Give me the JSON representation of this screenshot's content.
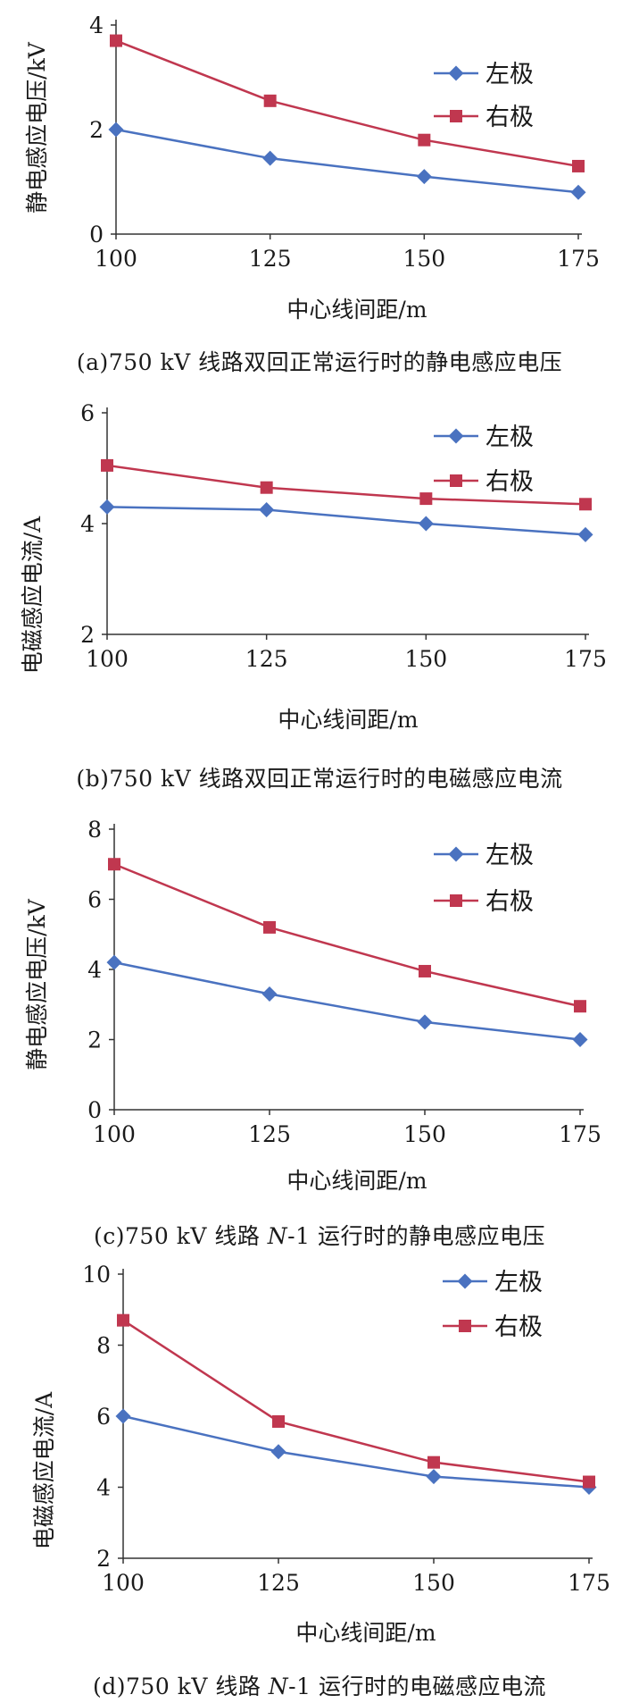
{
  "colors": {
    "left": "#4a72c0",
    "right": "#c0374f",
    "axis": "#333333"
  },
  "legend": {
    "left": "左极",
    "right": "右极"
  },
  "chart_data": [
    {
      "type": "line",
      "caption": "(a)750 kV 线路双回正常运行时的静电感应电压",
      "xlabel": "中心线间距/m",
      "ylabel": "静电感应电压/kV",
      "x": [
        100,
        125,
        150,
        175
      ],
      "xticks": [
        "100",
        "125",
        "150",
        "175"
      ],
      "yticks": [
        "0",
        "2",
        "4"
      ],
      "ylim": [
        0,
        4
      ],
      "series": [
        {
          "name": "左极",
          "values": [
            2.0,
            1.45,
            1.1,
            0.8
          ]
        },
        {
          "name": "右极",
          "values": [
            3.7,
            2.55,
            1.8,
            1.3
          ]
        }
      ]
    },
    {
      "type": "line",
      "caption": "(b)750 kV 线路双回正常运行时的电磁感应电流",
      "xlabel": "中心线间距/m",
      "ylabel": "电磁感应电流/A",
      "x": [
        100,
        125,
        150,
        175
      ],
      "xticks": [
        "100",
        "125",
        "150",
        "175"
      ],
      "yticks": [
        "2",
        "4",
        "6"
      ],
      "ylim": [
        2,
        6
      ],
      "series": [
        {
          "name": "左极",
          "values": [
            4.3,
            4.25,
            4.0,
            3.8
          ]
        },
        {
          "name": "右极",
          "values": [
            5.05,
            4.65,
            4.45,
            4.35
          ]
        }
      ]
    },
    {
      "type": "line",
      "caption": "(c)750 kV 线路 N-1 运行时的静电感应电压",
      "xlabel": "中心线间距/m",
      "ylabel": "静电感应电压/kV",
      "x": [
        100,
        125,
        150,
        175
      ],
      "xticks": [
        "100",
        "125",
        "150",
        "175"
      ],
      "yticks": [
        "0",
        "2",
        "4",
        "6",
        "8"
      ],
      "ylim": [
        0,
        8
      ],
      "series": [
        {
          "name": "左极",
          "values": [
            4.2,
            3.3,
            2.5,
            2.0
          ]
        },
        {
          "name": "右极",
          "values": [
            7.0,
            5.2,
            3.95,
            2.95
          ]
        }
      ]
    },
    {
      "type": "line",
      "caption": "(d)750 kV 线路 N-1 运行时的电磁感应电流",
      "xlabel": "中心线间距/m",
      "ylabel": "电磁感应电流/A",
      "x": [
        100,
        125,
        150,
        175
      ],
      "xticks": [
        "100",
        "125",
        "150",
        "175"
      ],
      "yticks": [
        "2",
        "4",
        "6",
        "8",
        "10"
      ],
      "ylim": [
        2,
        10
      ],
      "series": [
        {
          "name": "左极",
          "values": [
            6.0,
            5.0,
            4.3,
            4.0
          ]
        },
        {
          "name": "右极",
          "values": [
            8.7,
            5.85,
            4.7,
            4.15
          ]
        }
      ]
    }
  ]
}
